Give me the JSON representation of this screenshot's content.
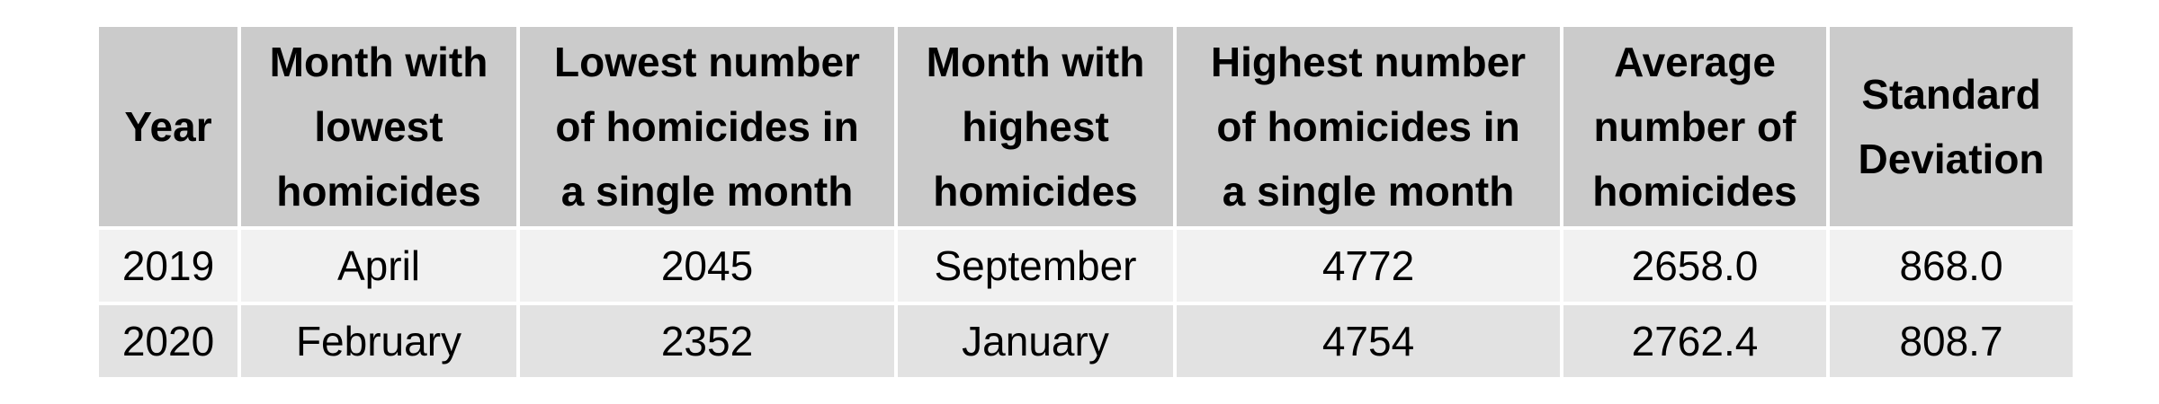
{
  "chart_data": {
    "type": "table",
    "columns": [
      [
        "Year"
      ],
      [
        "Month with",
        "lowest",
        "homicides"
      ],
      [
        "Lowest number",
        "of homicides in",
        "a single month"
      ],
      [
        "Month with",
        "highest",
        "homicides"
      ],
      [
        "Highest number",
        "of homicides in",
        "a single month"
      ],
      [
        "Average",
        "number of",
        "homicides"
      ],
      [
        "Standard",
        "Deviation"
      ]
    ],
    "rows": [
      [
        "2019",
        "April",
        "2045",
        "September",
        "4772",
        "2658.0",
        "868.0"
      ],
      [
        "2020",
        "February",
        "2352",
        "January",
        "4754",
        "2762.4",
        "808.7"
      ]
    ]
  }
}
